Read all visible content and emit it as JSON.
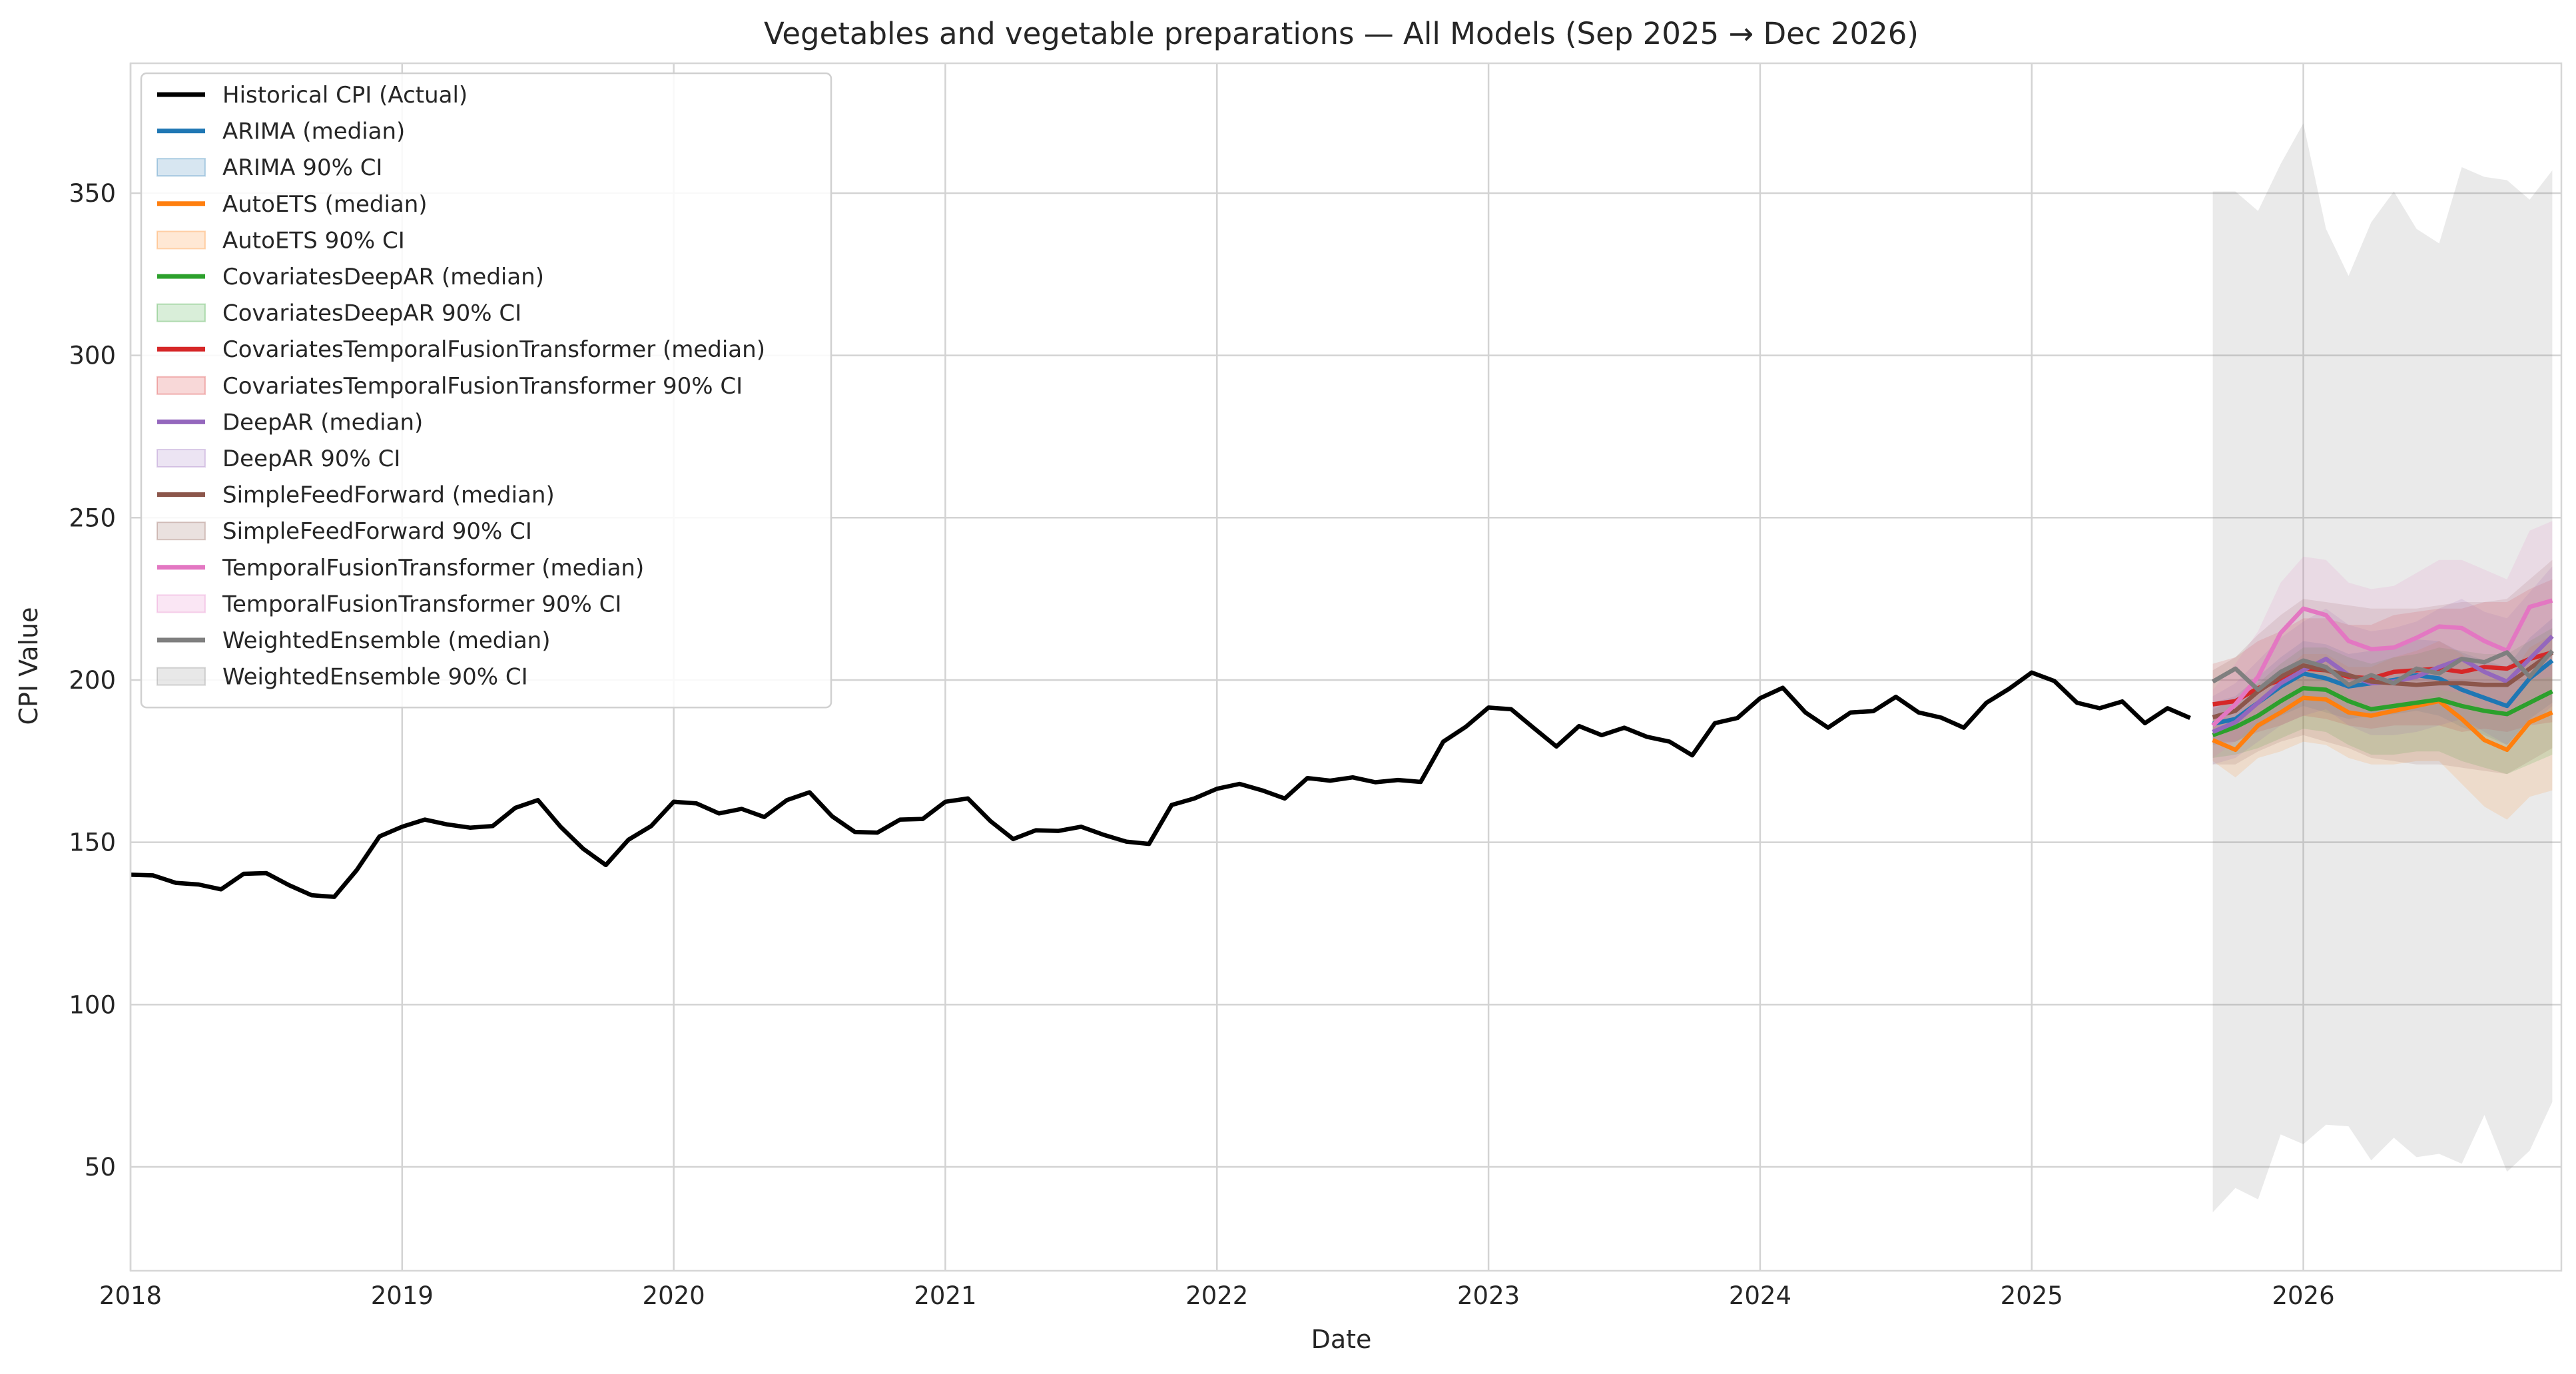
{
  "chart_data": {
    "type": "line",
    "title": "Vegetables and vegetable preparations — All Models (Sep 2025 → Dec 2026)",
    "xlabel": "Date",
    "ylabel": "CPI Value",
    "xlim": [
      2018.0,
      2026.95
    ],
    "ylim": [
      18,
      390
    ],
    "x_ticks": [
      "2018",
      "2019",
      "2020",
      "2021",
      "2022",
      "2023",
      "2024",
      "2025",
      "2026"
    ],
    "y_ticks": [
      "50",
      "100",
      "150",
      "200",
      "250",
      "300",
      "350"
    ],
    "grid": true,
    "legend_position": "top-left",
    "historical": {
      "name": "Historical CPI (Actual)",
      "color": "#000000",
      "start": "2018-01",
      "values": [
        140.0,
        139.8,
        137.5,
        137.0,
        135.5,
        140.3,
        140.5,
        136.8,
        133.7,
        133.2,
        141.5,
        151.8,
        154.8,
        157.0,
        155.5,
        154.5,
        155.0,
        160.6,
        163.0,
        154.8,
        148.0,
        143.0,
        150.8,
        155.0,
        162.5,
        162.0,
        158.9,
        160.3,
        157.8,
        163.0,
        165.4,
        158.0,
        153.2,
        153.0,
        157.0,
        157.2,
        162.5,
        163.5,
        156.5,
        151.0,
        153.7,
        153.5,
        154.8,
        152.3,
        150.2,
        149.5,
        161.5,
        163.5,
        166.5,
        168.0,
        166.0,
        163.5,
        169.8,
        169.0,
        170.0,
        168.5,
        169.2,
        168.6,
        181.0,
        185.6,
        191.5,
        191.0,
        185.2,
        179.5,
        185.8,
        183.0,
        185.3,
        182.5,
        181.0,
        176.8,
        186.7,
        188.3,
        194.4,
        197.6,
        190.0,
        185.3,
        190.0,
        190.4,
        194.8,
        190.0,
        188.4,
        185.3,
        193.0,
        197.3,
        202.3,
        199.7,
        193.0,
        191.3,
        193.4,
        186.7,
        191.3,
        188.3
      ]
    },
    "forecast": {
      "start": "2025-09",
      "series": [
        {
          "name": "ARIMA",
          "median_label": "ARIMA (median)",
          "ci_label": "ARIMA 90% CI",
          "color": "#1f77b4",
          "median": [
            186.5,
            188.0,
            193.0,
            198.0,
            202.0,
            200.5,
            198.0,
            199.0,
            200.0,
            201.5,
            200.5,
            197.0,
            194.5,
            192.0,
            200.5,
            206.0
          ],
          "lower": [
            180.0,
            181.0,
            185.0,
            189.0,
            192.0,
            190.0,
            188.0,
            189.0,
            189.5,
            190.5,
            189.0,
            185.5,
            183.0,
            180.0,
            188.0,
            193.0
          ],
          "upper": [
            193.0,
            195.0,
            201.0,
            207.0,
            212.0,
            211.0,
            208.0,
            209.0,
            210.5,
            212.5,
            212.0,
            208.5,
            206.0,
            204.0,
            213.0,
            219.0
          ]
        },
        {
          "name": "AutoETS",
          "median_label": "AutoETS (median)",
          "ci_label": "AutoETS 90% CI",
          "color": "#ff7f0e",
          "median": [
            181.5,
            178.5,
            186.0,
            190.0,
            194.5,
            194.0,
            190.0,
            189.0,
            190.5,
            192.0,
            193.5,
            188.0,
            181.5,
            178.5,
            187.0,
            190.0
          ],
          "lower": [
            175.0,
            170.0,
            176.0,
            178.0,
            181.0,
            180.0,
            176.0,
            174.0,
            174.0,
            175.0,
            175.0,
            168.0,
            161.0,
            157.0,
            164.0,
            166.0
          ],
          "upper": [
            189.0,
            188.0,
            196.0,
            202.0,
            208.0,
            208.0,
            204.0,
            204.0,
            207.0,
            209.0,
            212.0,
            208.0,
            202.0,
            200.0,
            210.0,
            214.0
          ]
        },
        {
          "name": "CovariatesDeepAR",
          "median_label": "CovariatesDeepAR (median)",
          "ci_label": "CovariatesDeepAR 90% CI",
          "color": "#2ca02c",
          "median": [
            183.0,
            185.5,
            189.0,
            193.5,
            197.5,
            197.0,
            193.5,
            191.0,
            192.0,
            193.0,
            194.0,
            192.0,
            190.5,
            189.5,
            193.0,
            196.5
          ],
          "lower": [
            176.0,
            177.0,
            179.0,
            182.0,
            185.0,
            184.0,
            180.0,
            177.0,
            177.0,
            178.0,
            178.0,
            175.0,
            173.0,
            171.0,
            174.0,
            177.0
          ],
          "upper": [
            191.0,
            194.0,
            199.0,
            205.0,
            210.0,
            210.0,
            207.0,
            205.0,
            207.0,
            208.0,
            210.0,
            209.0,
            208.0,
            208.0,
            212.0,
            216.0
          ]
        },
        {
          "name": "CovariatesTemporalFusionTransformer",
          "median_label": "CovariatesTemporalFusionTransformer (median)",
          "ci_label": "CovariatesTemporalFusionTransformer 90% CI",
          "color": "#d62728",
          "median": [
            192.5,
            193.5,
            197.5,
            200.0,
            203.5,
            203.0,
            201.0,
            200.5,
            202.5,
            203.0,
            203.5,
            202.5,
            204.0,
            203.5,
            206.5,
            208.5
          ],
          "lower": [
            181.0,
            181.0,
            184.0,
            186.0,
            189.0,
            188.0,
            186.0,
            185.0,
            186.0,
            186.0,
            186.0,
            184.0,
            185.0,
            184.0,
            186.0,
            187.0
          ],
          "upper": [
            205.0,
            207.0,
            212.0,
            215.0,
            219.0,
            219.0,
            217.0,
            217.0,
            220.0,
            221.0,
            222.0,
            222.0,
            224.0,
            224.0,
            228.0,
            231.0
          ]
        },
        {
          "name": "DeepAR",
          "median_label": "DeepAR (median)",
          "ci_label": "DeepAR 90% CI",
          "color": "#9467bd",
          "median": [
            184.0,
            187.0,
            193.0,
            199.0,
            203.0,
            206.5,
            201.5,
            199.0,
            199.5,
            201.0,
            204.0,
            206.5,
            202.5,
            199.5,
            206.5,
            213.5
          ],
          "lower": [
            174.0,
            176.0,
            181.0,
            186.0,
            189.0,
            191.0,
            186.0,
            183.0,
            183.0,
            184.0,
            186.0,
            188.0,
            184.0,
            180.0,
            186.0,
            192.0
          ],
          "upper": [
            195.0,
            199.0,
            206.0,
            213.0,
            218.0,
            222.0,
            217.0,
            215.0,
            216.0,
            218.0,
            222.0,
            225.0,
            221.0,
            219.0,
            227.0,
            235.0
          ]
        },
        {
          "name": "SimpleFeedForward",
          "median_label": "SimpleFeedForward (median)",
          "ci_label": "SimpleFeedForward 90% CI",
          "color": "#8c564b",
          "median": [
            188.5,
            190.5,
            196.5,
            201.0,
            204.5,
            203.0,
            201.5,
            199.5,
            199.0,
            198.5,
            199.0,
            199.0,
            198.5,
            198.5,
            203.5,
            208.5
          ],
          "lower": [
            174.0,
            174.0,
            178.0,
            181.0,
            183.0,
            181.0,
            179.0,
            176.0,
            175.0,
            174.0,
            174.0,
            173.0,
            172.0,
            171.0,
            175.0,
            179.0
          ],
          "upper": [
            203.0,
            207.0,
            214.0,
            220.0,
            225.0,
            224.0,
            223.0,
            222.0,
            222.0,
            222.0,
            223.0,
            224.0,
            224.0,
            225.0,
            231.0,
            237.0
          ]
        },
        {
          "name": "TemporalFusionTransformer",
          "median_label": "TemporalFusionTransformer (median)",
          "ci_label": "TemporalFusionTransformer 90% CI",
          "color": "#e377c2",
          "median": [
            186.0,
            192.5,
            201.0,
            214.5,
            222.0,
            220.0,
            212.0,
            209.5,
            210.0,
            213.0,
            216.5,
            216.0,
            212.0,
            209.0,
            222.5,
            224.5
          ],
          "lower": [
            176.0,
            181.0,
            188.0,
            200.0,
            206.0,
            203.0,
            195.0,
            192.0,
            192.0,
            194.0,
            197.0,
            196.0,
            191.0,
            188.0,
            200.0,
            201.0
          ],
          "upper": [
            197.0,
            205.0,
            215.0,
            230.0,
            238.0,
            237.0,
            230.0,
            228.0,
            229.0,
            233.0,
            237.0,
            237.0,
            234.0,
            231.0,
            246.0,
            249.0
          ]
        },
        {
          "name": "WeightedEnsemble",
          "median_label": "WeightedEnsemble (median)",
          "ci_label": "WeightedEnsemble 90% CI",
          "color": "#7f7f7f",
          "median": [
            199.5,
            203.5,
            197.0,
            202.5,
            206.0,
            204.0,
            198.5,
            201.5,
            199.0,
            203.5,
            202.0,
            206.5,
            205.5,
            208.5,
            201.0,
            209.0
          ],
          "lower": [
            36.0,
            43.5,
            40.0,
            60.0,
            57.0,
            63.0,
            62.5,
            52.0,
            59.0,
            53.0,
            54.0,
            51.0,
            66.0,
            48.5,
            55.0,
            70.0
          ],
          "upper": [
            350.5,
            350.5,
            344.5,
            359.0,
            371.5,
            339.0,
            324.5,
            341.0,
            350.5,
            339.0,
            334.5,
            358.0,
            355.0,
            354.0,
            348.0,
            357.0
          ]
        }
      ]
    }
  }
}
